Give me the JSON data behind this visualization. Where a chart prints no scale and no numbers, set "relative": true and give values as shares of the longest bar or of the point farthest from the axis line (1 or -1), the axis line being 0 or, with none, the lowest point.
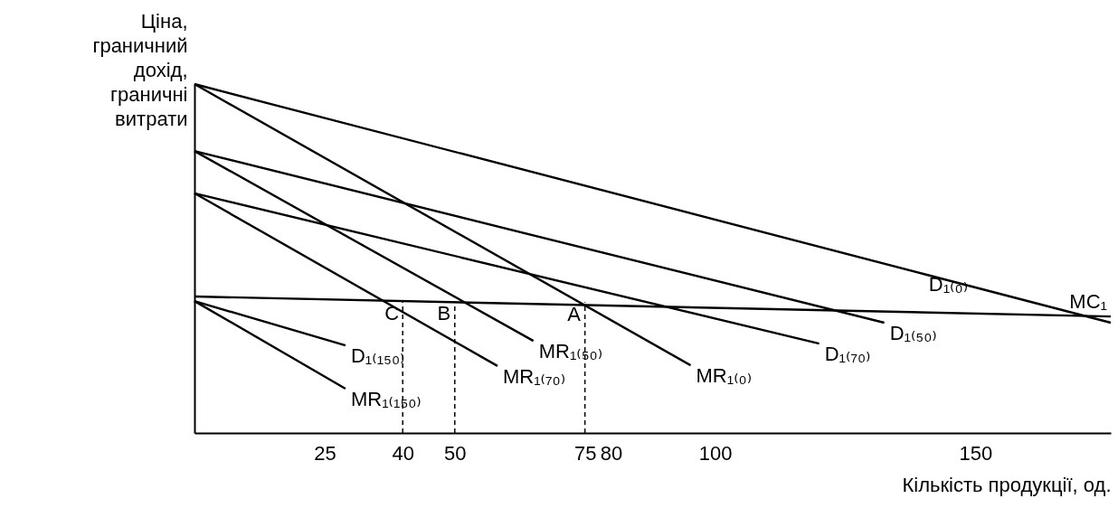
{
  "chart_data": {
    "type": "line",
    "relative": true,
    "xlabel": "Кількість продукції, од.",
    "ylabel": "Ціна, граничний дохід, граничні витрати",
    "xlim": [
      0,
      176
    ],
    "xticks": [
      25,
      40,
      50,
      75,
      80,
      100,
      150
    ],
    "grid": false,
    "legend": false,
    "line_style": "solid",
    "marker": "none",
    "series": [
      {
        "name": "D₁₍₀₎",
        "color": "#000000",
        "x": [
          0,
          140,
          176
        ],
        "values": [
          1,
          0.456,
          0.316
        ]
      },
      {
        "name": "MR₁₍₀₎",
        "color": "#000000",
        "x": [
          0,
          95.3
        ],
        "values": [
          1,
          0.194
        ]
      },
      {
        "name": "D₁₍₅₀₎",
        "color": "#000000",
        "x": [
          0,
          132.5
        ],
        "values": [
          0.808,
          0.316
        ]
      },
      {
        "name": "MR₁₍₅₀₎",
        "color": "#000000",
        "x": [
          0,
          65.1
        ],
        "values": [
          0.808,
          0.264
        ]
      },
      {
        "name": "D₁₍₇₀₎",
        "color": "#000000",
        "x": [
          0,
          120
        ],
        "values": [
          0.687,
          0.256
        ]
      },
      {
        "name": "MR₁₍₇₀₎",
        "color": "#000000",
        "x": [
          0,
          58.2
        ],
        "values": [
          0.687,
          0.192
        ]
      },
      {
        "name": "D₁₍₁₅₀₎",
        "color": "#000000",
        "x": [
          0,
          29
        ],
        "values": [
          0.378,
          0.251
        ]
      },
      {
        "name": "MR₁₍₁₅₀₎",
        "color": "#000000",
        "x": [
          0,
          29
        ],
        "values": [
          0.378,
          0.127
        ]
      },
      {
        "name": "MC₁",
        "color": "#000000",
        "x": [
          0,
          176
        ],
        "values": [
          0.391,
          0.334
        ]
      }
    ],
    "ref_lines": [
      {
        "axis": "x",
        "value": 40,
        "line_style": "dashed"
      },
      {
        "axis": "x",
        "value": 50,
        "line_style": "dashed"
      },
      {
        "axis": "x",
        "value": 75,
        "line_style": "dashed"
      }
    ],
    "annotations": [
      {
        "text": "C",
        "x": 40,
        "y": 0.379
      },
      {
        "text": "B",
        "x": 50,
        "y": 0.377
      },
      {
        "text": "A",
        "x": 75,
        "y": 0.375
      }
    ]
  }
}
